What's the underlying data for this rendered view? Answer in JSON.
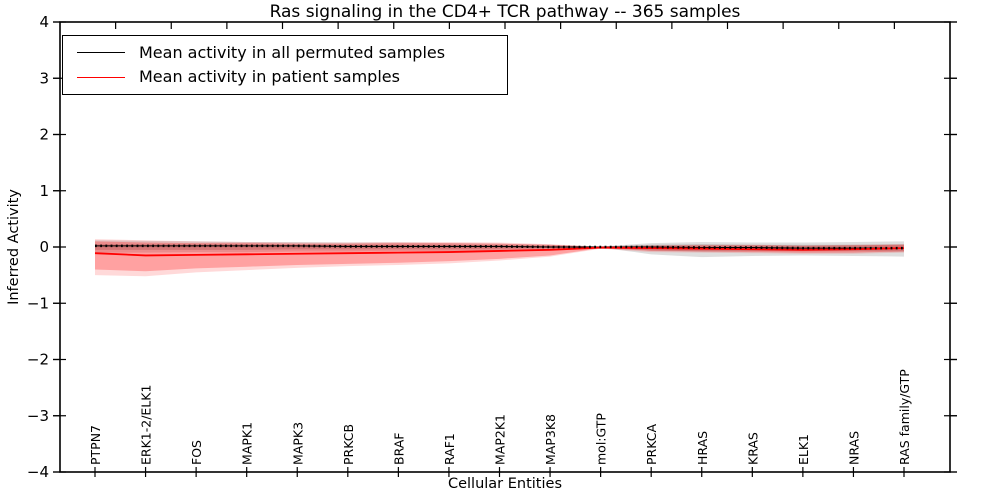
{
  "chart_data": {
    "type": "line",
    "title": "Ras signaling in the CD4+ TCR pathway -- 365 samples",
    "xlabel": "Cellular Entities",
    "ylabel": "Inferred Activity",
    "ylim": [
      -4,
      4
    ],
    "ytick_values": [
      4,
      3,
      2,
      1,
      0,
      -1,
      -2,
      -3,
      -4
    ],
    "ytick_labels": [
      "4",
      "3",
      "2",
      "1",
      "0",
      "−1",
      "−2",
      "−3",
      "−4"
    ],
    "grid": false,
    "legend_position": "upper left",
    "categories": [
      "PTPN7",
      "ERK1-2/ELK1",
      "FOS",
      "MAPK1",
      "MAPK3",
      "PRKCB",
      "BRAF",
      "RAF1",
      "MAP2K1",
      "MAP3K8",
      "mol:GTP",
      "PRKCA",
      "HRAS",
      "KRAS",
      "ELK1",
      "NRAS",
      "RAS family/GTP"
    ],
    "series": [
      {
        "name": "Mean activity in all permuted samples",
        "color": "#000000",
        "line_style": "solid_with_dots",
        "values": [
          0.02,
          0.02,
          0.02,
          0.02,
          0.02,
          0.01,
          0.01,
          0.01,
          0.01,
          0.0,
          0.0,
          0.0,
          -0.01,
          -0.01,
          -0.02,
          -0.02,
          -0.02
        ],
        "band_color": "#000000",
        "band_inner": {
          "upper": [
            0.05,
            0.05,
            0.05,
            0.05,
            0.04,
            0.04,
            0.04,
            0.04,
            0.03,
            0.02,
            0.01,
            0.04,
            0.05,
            0.04,
            0.04,
            0.04,
            0.05
          ],
          "lower": [
            -0.05,
            -0.05,
            -0.05,
            -0.05,
            -0.04,
            -0.04,
            -0.04,
            -0.04,
            -0.03,
            -0.02,
            -0.01,
            -0.06,
            -0.08,
            -0.07,
            -0.07,
            -0.07,
            -0.08
          ]
        },
        "band_outer": {
          "upper": [
            0.12,
            0.11,
            0.1,
            0.09,
            0.09,
            0.08,
            0.08,
            0.07,
            0.06,
            0.04,
            0.01,
            0.07,
            0.09,
            0.08,
            0.08,
            0.09,
            0.1
          ],
          "lower": [
            -0.1,
            -0.1,
            -0.09,
            -0.09,
            -0.08,
            -0.08,
            -0.07,
            -0.07,
            -0.06,
            -0.04,
            -0.01,
            -0.13,
            -0.18,
            -0.16,
            -0.15,
            -0.16,
            -0.17
          ]
        }
      },
      {
        "name": "Mean activity in patient samples",
        "color": "#ff0000",
        "line_style": "solid",
        "values": [
          -0.11,
          -0.15,
          -0.14,
          -0.13,
          -0.12,
          -0.11,
          -0.1,
          -0.09,
          -0.07,
          -0.05,
          -0.01,
          -0.02,
          -0.03,
          -0.04,
          -0.05,
          -0.04,
          -0.02
        ],
        "band_color": "#ff0000",
        "band_inner": {
          "upper": [
            0.1,
            0.08,
            0.07,
            0.07,
            0.06,
            0.06,
            0.07,
            0.07,
            0.06,
            0.04,
            0.0,
            0.02,
            0.03,
            0.03,
            0.02,
            0.03,
            0.04
          ],
          "lower": [
            -0.4,
            -0.43,
            -0.38,
            -0.35,
            -0.32,
            -0.3,
            -0.28,
            -0.25,
            -0.21,
            -0.15,
            -0.02,
            -0.07,
            -0.08,
            -0.09,
            -0.1,
            -0.1,
            -0.08
          ]
        },
        "band_outer": {
          "upper": [
            0.14,
            0.12,
            0.1,
            0.09,
            0.08,
            0.08,
            0.09,
            0.09,
            0.08,
            0.05,
            0.01,
            0.03,
            0.04,
            0.04,
            0.03,
            0.04,
            0.05
          ],
          "lower": [
            -0.5,
            -0.52,
            -0.45,
            -0.41,
            -0.37,
            -0.34,
            -0.32,
            -0.29,
            -0.24,
            -0.17,
            -0.03,
            -0.09,
            -0.1,
            -0.11,
            -0.12,
            -0.12,
            -0.1
          ]
        }
      }
    ]
  }
}
